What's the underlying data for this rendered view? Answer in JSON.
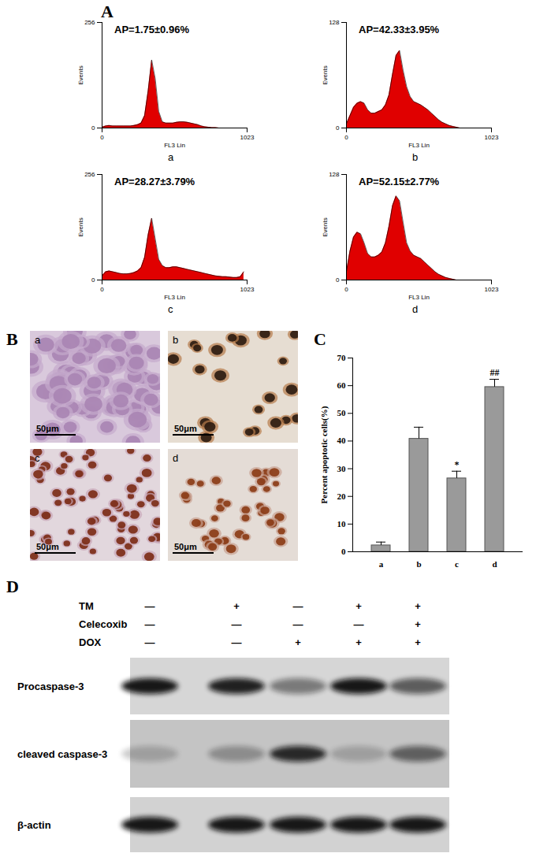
{
  "panel_labels": [
    "A",
    "B",
    "C",
    "D"
  ],
  "chart_data": [
    {
      "type": "area",
      "panel": "a",
      "annotation": "AP=1.75±0.96%",
      "x_label": "FL3 Lin",
      "y_label": "Events",
      "color": "#e00000",
      "x": [
        0,
        25,
        50,
        75,
        100,
        125,
        150,
        175,
        200,
        225,
        250,
        275,
        300,
        325,
        350,
        375,
        400,
        425,
        450,
        475,
        500,
        525,
        550,
        575,
        600,
        625,
        650,
        675,
        700,
        725,
        750,
        775,
        800,
        825,
        850,
        875,
        900,
        925,
        950,
        975,
        1000
      ],
      "values": [
        2,
        5,
        6,
        5,
        5,
        5,
        5,
        5,
        5,
        6,
        8,
        12,
        30,
        90,
        165,
        120,
        40,
        15,
        12,
        12,
        12,
        14,
        15,
        15,
        14,
        12,
        10,
        8,
        5,
        3,
        2,
        1,
        1,
        0,
        0,
        0,
        0,
        0,
        0,
        0,
        0
      ],
      "xlim": [
        0,
        1023
      ],
      "xticks": [
        0,
        1023
      ],
      "ylim": [
        0,
        256
      ],
      "yticks": [
        0,
        256
      ]
    },
    {
      "type": "area",
      "panel": "b",
      "annotation": "AP=42.33±3.95%",
      "x_label": "FL3 Lin",
      "y_label": "Events",
      "color": "#e00000",
      "x": [
        0,
        25,
        50,
        75,
        100,
        125,
        150,
        175,
        200,
        225,
        250,
        275,
        300,
        325,
        350,
        375,
        400,
        425,
        450,
        475,
        500,
        525,
        550,
        575,
        600,
        625,
        650,
        675,
        700,
        725,
        750,
        775,
        800,
        825,
        850,
        875,
        900,
        925,
        950,
        975,
        1000
      ],
      "values": [
        5,
        15,
        25,
        30,
        32,
        30,
        22,
        18,
        18,
        20,
        22,
        28,
        40,
        65,
        88,
        94,
        70,
        50,
        38,
        32,
        30,
        28,
        25,
        22,
        18,
        14,
        10,
        7,
        5,
        3,
        2,
        1,
        0,
        0,
        0,
        0,
        0,
        0,
        0,
        0,
        0
      ],
      "xlim": [
        0,
        1023
      ],
      "xticks": [
        0,
        1023
      ],
      "ylim": [
        0,
        128
      ],
      "yticks": [
        0,
        128
      ]
    },
    {
      "type": "area",
      "panel": "c",
      "annotation": "AP=28.27±3.79%",
      "x_label": "FL3 Lin",
      "y_label": "Events",
      "color": "#e00000",
      "x": [
        0,
        25,
        50,
        75,
        100,
        125,
        150,
        175,
        200,
        225,
        250,
        275,
        300,
        325,
        350,
        375,
        400,
        425,
        450,
        475,
        500,
        525,
        550,
        575,
        600,
        625,
        650,
        675,
        700,
        725,
        750,
        775,
        800,
        825,
        850,
        875,
        900,
        925,
        950,
        975,
        1000
      ],
      "values": [
        10,
        20,
        22,
        20,
        18,
        16,
        15,
        15,
        16,
        18,
        22,
        30,
        55,
        110,
        150,
        100,
        50,
        35,
        30,
        30,
        32,
        32,
        30,
        28,
        26,
        24,
        22,
        20,
        18,
        16,
        14,
        12,
        10,
        9,
        8,
        8,
        7,
        6,
        6,
        8,
        20
      ],
      "xlim": [
        0,
        1023
      ],
      "xticks": [
        0,
        1023
      ],
      "ylim": [
        0,
        256
      ],
      "yticks": [
        0,
        256
      ]
    },
    {
      "type": "area",
      "panel": "d",
      "annotation": "AP=52.15±2.77%",
      "x_label": "FL3 Lin",
      "y_label": "Events",
      "color": "#e00000",
      "x": [
        0,
        25,
        50,
        75,
        100,
        125,
        150,
        175,
        200,
        225,
        250,
        275,
        300,
        325,
        350,
        375,
        400,
        425,
        450,
        475,
        500,
        525,
        550,
        575,
        600,
        625,
        650,
        675,
        700,
        725,
        750,
        775,
        800,
        825,
        850,
        875,
        900,
        925,
        950,
        975,
        1000
      ],
      "values": [
        10,
        35,
        52,
        58,
        56,
        45,
        32,
        28,
        28,
        30,
        34,
        45,
        65,
        90,
        102,
        96,
        70,
        45,
        35,
        30,
        28,
        26,
        22,
        18,
        14,
        10,
        7,
        5,
        3,
        2,
        1,
        0,
        0,
        0,
        0,
        0,
        0,
        0,
        0,
        0,
        0
      ],
      "xlim": [
        0,
        1023
      ],
      "xticks": [
        0,
        1023
      ],
      "ylim": [
        0,
        128
      ],
      "yticks": [
        0,
        128
      ]
    },
    {
      "type": "bar",
      "y_label": "Percent apoptotic cells(%)",
      "color": "#9a9a9a",
      "categories": [
        "a",
        "b",
        "c",
        "d"
      ],
      "values": [
        2.3,
        40.8,
        26.5,
        59.5
      ],
      "errors": [
        1.2,
        4.2,
        2.6,
        2.8
      ],
      "annotations": [
        {
          "category": "c",
          "text": "*"
        },
        {
          "category": "d",
          "text": "##"
        }
      ],
      "ylim": [
        0,
        70
      ],
      "yticks": [
        0,
        10,
        20,
        30,
        40,
        50,
        60,
        70
      ]
    }
  ],
  "micrographs": {
    "panels": [
      {
        "label": "a",
        "scale_bar": "50μm"
      },
      {
        "label": "b",
        "scale_bar": "50μm"
      },
      {
        "label": "c",
        "scale_bar": "50μm"
      },
      {
        "label": "d",
        "scale_bar": "50μm"
      }
    ]
  },
  "western_blot": {
    "conditions": [
      {
        "name": "TM",
        "lanes": [
          "—",
          "+",
          "—",
          "+",
          "+"
        ]
      },
      {
        "name": "Celecoxib",
        "lanes": [
          "—",
          "—",
          "—",
          "—",
          "+"
        ]
      },
      {
        "name": "DOX",
        "lanes": [
          "—",
          "—",
          "+",
          "+",
          "+"
        ]
      }
    ],
    "bands": [
      {
        "name": "Procaspase-3",
        "intensity": [
          0.95,
          0.9,
          0.45,
          0.95,
          0.6
        ]
      },
      {
        "name": "cleaved caspase-3",
        "intensity": [
          0.2,
          0.3,
          0.85,
          0.2,
          0.55
        ]
      },
      {
        "name": "β-actin",
        "intensity": [
          0.95,
          0.95,
          0.95,
          0.95,
          0.95
        ]
      }
    ]
  }
}
